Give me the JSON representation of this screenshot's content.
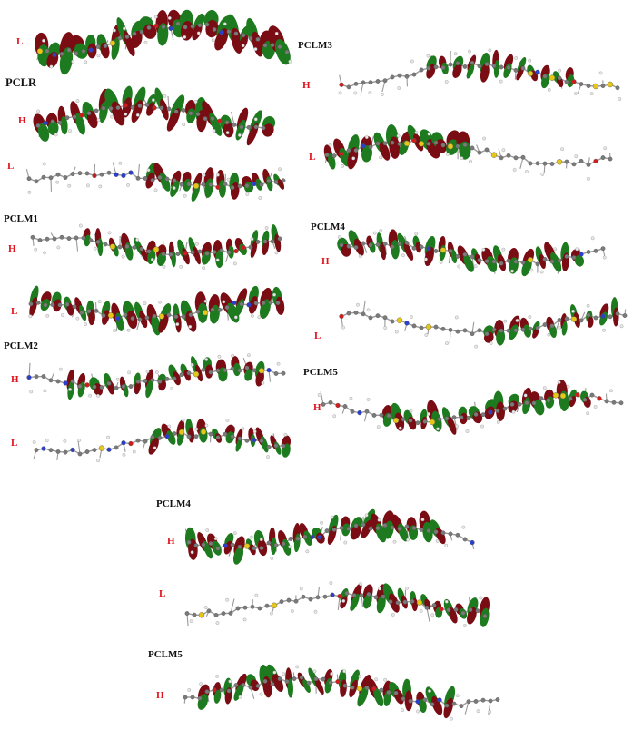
{
  "figure": {
    "molecules": [
      {
        "name": "",
        "orbitals": [
          "L"
        ]
      },
      {
        "name": "PCLR",
        "orbitals": [
          "H",
          "L"
        ]
      },
      {
        "name": "PCLM1",
        "orbitals": [
          "H",
          "L"
        ]
      },
      {
        "name": "PCLM2",
        "orbitals": [
          "H",
          "L"
        ]
      },
      {
        "name": "PCLM3",
        "orbitals": [
          "H",
          "L"
        ]
      },
      {
        "name": "PCLM4",
        "orbitals": [
          "H",
          "L"
        ]
      },
      {
        "name": "PCLM5",
        "orbitals": [
          "H"
        ]
      },
      {
        "name": "PCLM4",
        "orbitals": [
          "H",
          "L"
        ]
      },
      {
        "name": "PCLM5",
        "orbitals": [
          "H"
        ]
      }
    ],
    "colors": {
      "lobe_positive": "#7a0c14",
      "lobe_negative": "#1e7a1e",
      "sulfur": "#e6c619",
      "nitrogen": "#2a3fd0",
      "oxygen": "#d01c1c",
      "carbon": "#7a7a7a",
      "hydrogen": "#e8e8e8",
      "orbital_label": "#e0141e"
    }
  }
}
